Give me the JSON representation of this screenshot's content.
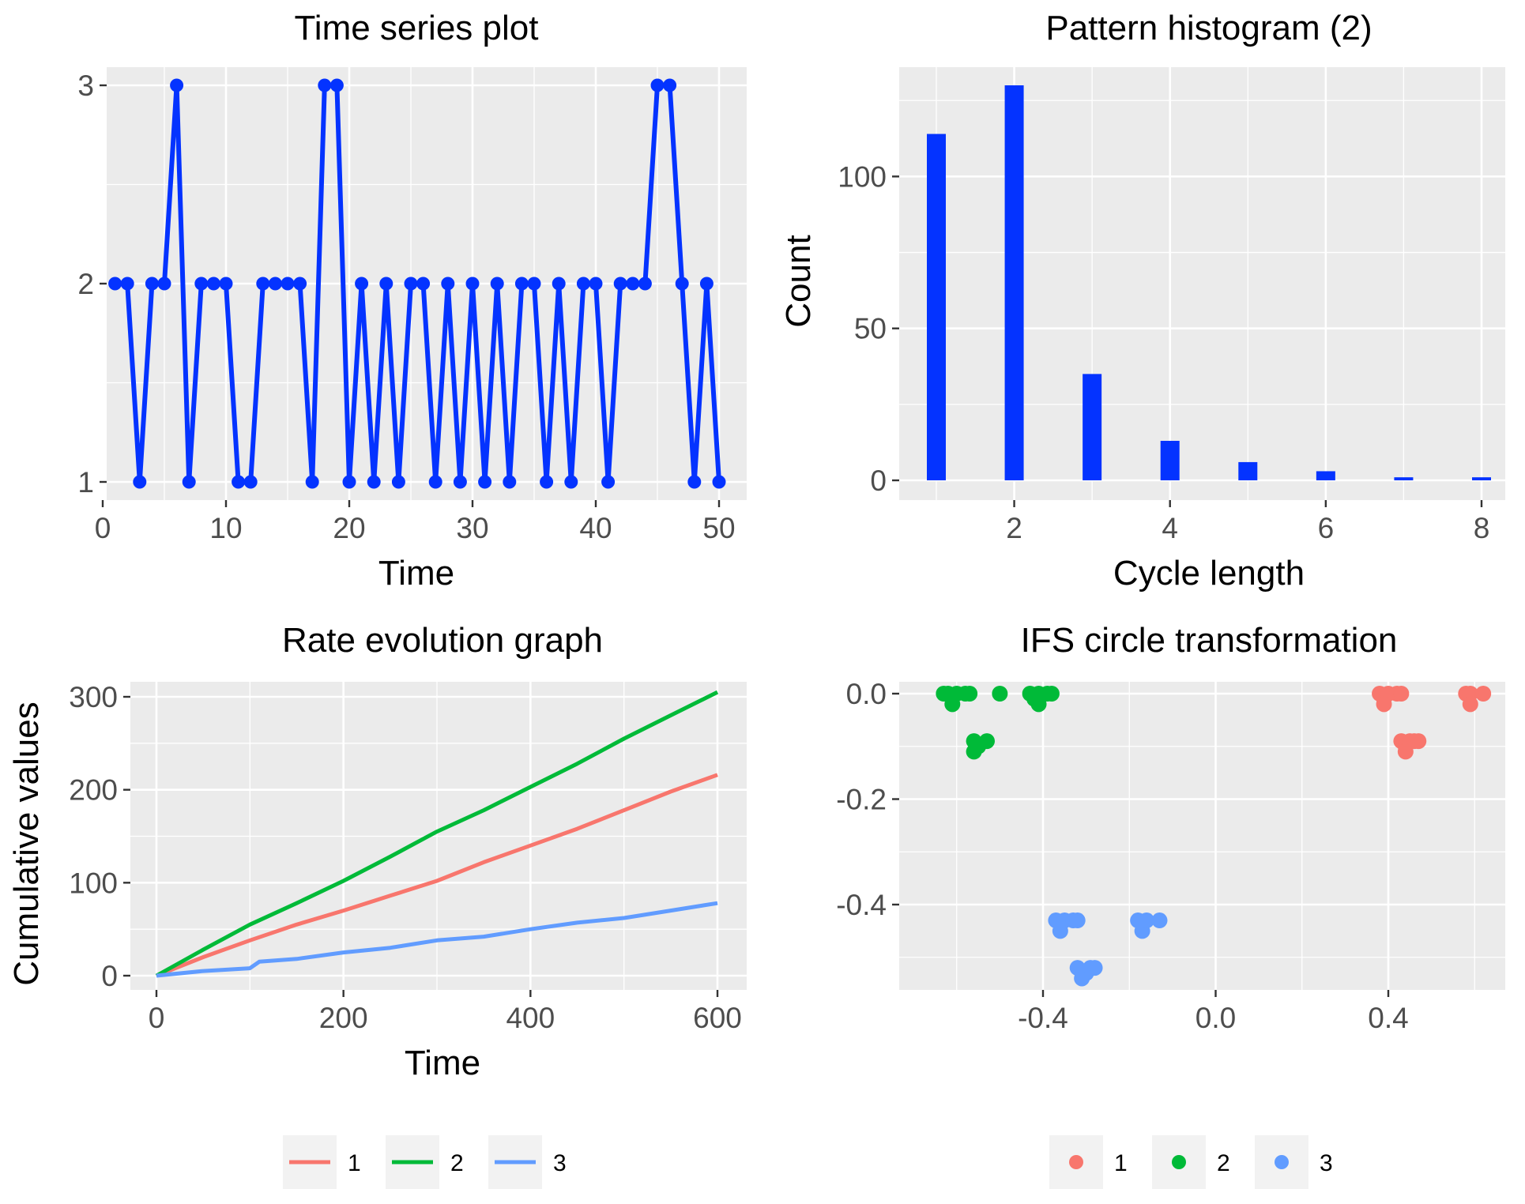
{
  "chart_data": [
    {
      "type": "line",
      "title": "Time series plot",
      "xlabel": "Time",
      "ylabel": "",
      "xlim": [
        0,
        50
      ],
      "ylim": [
        1,
        3
      ],
      "xticks": [
        0,
        10,
        20,
        30,
        40,
        50
      ],
      "yticks": [
        1,
        2,
        3
      ],
      "color": "#0433ff",
      "markers": true,
      "x": [
        1,
        2,
        3,
        4,
        5,
        6,
        7,
        8,
        9,
        10,
        11,
        12,
        13,
        14,
        15,
        16,
        17,
        18,
        19,
        20,
        21,
        22,
        23,
        24,
        25,
        26,
        27,
        28,
        29,
        30,
        31,
        32,
        33,
        34,
        35,
        36,
        37,
        38,
        39,
        40,
        41,
        42,
        43,
        44,
        45,
        46,
        47,
        48,
        49,
        50
      ],
      "values": [
        2,
        2,
        1,
        2,
        2,
        3,
        1,
        2,
        2,
        2,
        1,
        1,
        2,
        2,
        2,
        2,
        1,
        3,
        3,
        1,
        2,
        1,
        2,
        1,
        2,
        2,
        1,
        2,
        1,
        2,
        1,
        2,
        1,
        2,
        2,
        1,
        2,
        1,
        2,
        2,
        1,
        2,
        2,
        2,
        3,
        3,
        2,
        1,
        2,
        1
      ]
    },
    {
      "type": "bar",
      "title": "Pattern histogram (2)",
      "xlabel": "Cycle length",
      "ylabel": "Count",
      "xlim": [
        0.5,
        8.5
      ],
      "ylim": [
        0,
        130
      ],
      "xticks": [
        2,
        4,
        6,
        8
      ],
      "yticks": [
        0,
        50,
        100
      ],
      "color": "#0433ff",
      "categories": [
        1,
        2,
        3,
        4,
        5,
        6,
        7,
        8
      ],
      "values": [
        114,
        130,
        35,
        13,
        6,
        3,
        1,
        1
      ]
    },
    {
      "type": "line",
      "title": "Rate evolution graph",
      "xlabel": "Time",
      "ylabel": "Cumulative values",
      "xlim": [
        0,
        600
      ],
      "ylim": [
        0,
        305
      ],
      "xticks": [
        0,
        200,
        400,
        600
      ],
      "yticks": [
        0,
        100,
        200,
        300
      ],
      "legend": "bottom",
      "series": [
        {
          "name": "1",
          "color": "#f8766d",
          "x": [
            0,
            50,
            100,
            150,
            200,
            250,
            300,
            350,
            400,
            450,
            500,
            550,
            600
          ],
          "values": [
            0,
            20,
            38,
            55,
            70,
            86,
            102,
            122,
            140,
            158,
            178,
            198,
            216
          ]
        },
        {
          "name": "2",
          "color": "#00ba38",
          "x": [
            0,
            50,
            100,
            150,
            200,
            250,
            300,
            350,
            400,
            450,
            500,
            550,
            600
          ],
          "values": [
            0,
            28,
            55,
            78,
            102,
            128,
            155,
            178,
            203,
            228,
            255,
            280,
            305
          ]
        },
        {
          "name": "3",
          "color": "#619cff",
          "x": [
            0,
            50,
            100,
            110,
            150,
            200,
            250,
            300,
            350,
            400,
            450,
            500,
            550,
            600
          ],
          "values": [
            0,
            5,
            8,
            15,
            18,
            25,
            30,
            38,
            42,
            50,
            57,
            62,
            70,
            78
          ]
        }
      ]
    },
    {
      "type": "scatter",
      "title": "IFS circle transformation",
      "xlabel": "",
      "ylabel": "",
      "xlim": [
        -0.66,
        0.62
      ],
      "ylim": [
        -0.56,
        0.02
      ],
      "xticks": [
        -0.4,
        0.0,
        0.4
      ],
      "xtick_labels": [
        "-0.4",
        "0.0",
        "0.4"
      ],
      "yticks": [
        -0.4,
        -0.2,
        0.0
      ],
      "ytick_labels": [
        "-0.4",
        "-0.2",
        "0.0"
      ],
      "legend": "bottom",
      "series": [
        {
          "name": "1",
          "color": "#f8766d",
          "points": [
            [
              0.38,
              0.0
            ],
            [
              0.39,
              -0.01
            ],
            [
              0.4,
              0.0
            ],
            [
              0.42,
              0.0
            ],
            [
              0.43,
              0.0
            ],
            [
              0.39,
              -0.02
            ],
            [
              0.43,
              -0.09
            ],
            [
              0.44,
              -0.1
            ],
            [
              0.45,
              -0.09
            ],
            [
              0.46,
              -0.09
            ],
            [
              0.47,
              -0.09
            ],
            [
              0.44,
              -0.11
            ],
            [
              0.58,
              0.0
            ],
            [
              0.59,
              0.0
            ],
            [
              0.59,
              -0.02
            ],
            [
              0.62,
              0.0
            ]
          ]
        },
        {
          "name": "2",
          "color": "#00ba38",
          "points": [
            [
              -0.63,
              0.0
            ],
            [
              -0.62,
              0.0
            ],
            [
              -0.61,
              -0.02
            ],
            [
              -0.6,
              0.0
            ],
            [
              -0.58,
              0.0
            ],
            [
              -0.57,
              0.0
            ],
            [
              -0.56,
              -0.09
            ],
            [
              -0.56,
              -0.11
            ],
            [
              -0.55,
              -0.1
            ],
            [
              -0.53,
              -0.09
            ],
            [
              -0.5,
              0.0
            ],
            [
              -0.43,
              0.0
            ],
            [
              -0.42,
              -0.01
            ],
            [
              -0.41,
              -0.02
            ],
            [
              -0.41,
              0.0
            ],
            [
              -0.39,
              0.0
            ],
            [
              -0.38,
              0.0
            ]
          ]
        },
        {
          "name": "3",
          "color": "#619cff",
          "points": [
            [
              -0.37,
              -0.43
            ],
            [
              -0.36,
              -0.45
            ],
            [
              -0.35,
              -0.43
            ],
            [
              -0.33,
              -0.43
            ],
            [
              -0.32,
              -0.43
            ],
            [
              -0.32,
              -0.52
            ],
            [
              -0.31,
              -0.54
            ],
            [
              -0.3,
              -0.53
            ],
            [
              -0.29,
              -0.52
            ],
            [
              -0.28,
              -0.52
            ],
            [
              -0.18,
              -0.43
            ],
            [
              -0.17,
              -0.45
            ],
            [
              -0.16,
              -0.43
            ],
            [
              -0.13,
              -0.43
            ]
          ]
        }
      ]
    }
  ]
}
